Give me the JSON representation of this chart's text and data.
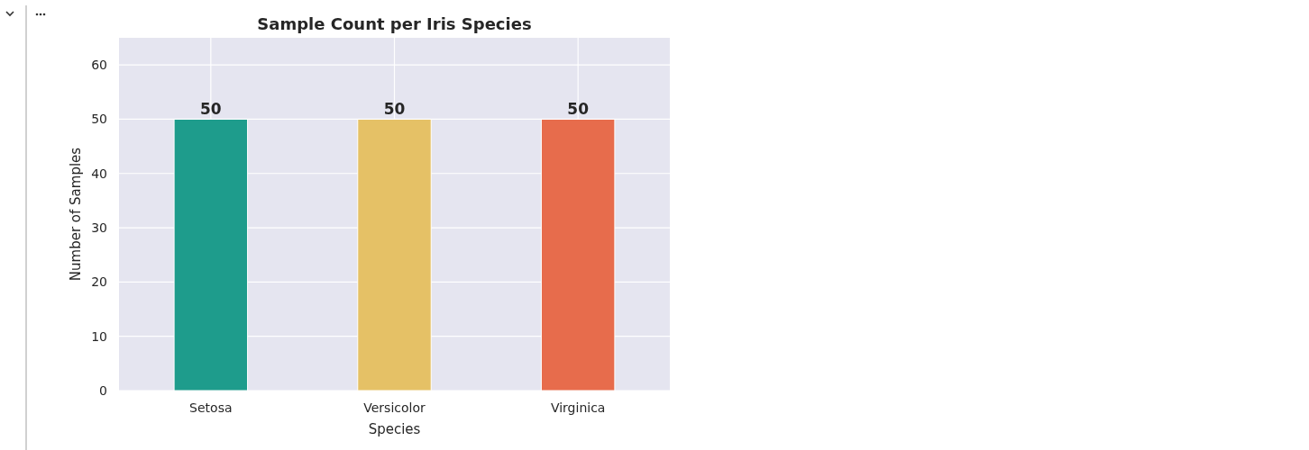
{
  "chart_data": {
    "type": "bar",
    "title": "Sample Count per Iris Species",
    "xlabel": "Species",
    "ylabel": "Number of Samples",
    "categories": [
      "Setosa",
      "Versicolor",
      "Virginica"
    ],
    "values": [
      50,
      50,
      50
    ],
    "colors": [
      "#1e9c8c",
      "#e5c166",
      "#e76c4c"
    ],
    "ylim": [
      0,
      65
    ],
    "yticks": [
      0,
      10,
      20,
      30,
      40,
      50,
      60
    ],
    "grid": true,
    "data_labels": true
  }
}
